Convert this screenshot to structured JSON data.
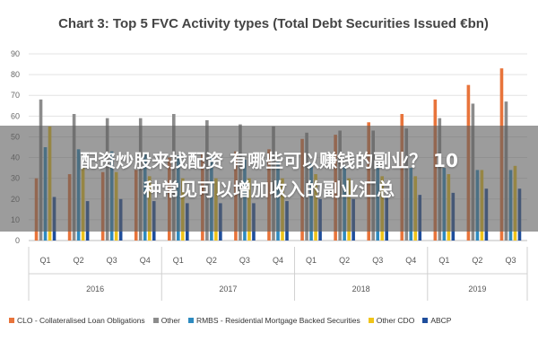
{
  "overlay": {
    "line1": "配资炒股来找配资 有哪些可以赚钱的副业？ 10",
    "line2": "种常见可以增加收入的副业汇总"
  },
  "chart_data": {
    "type": "bar",
    "title": "Chart 3: Top 5 FVC Activity types (Total Debt Securities Issued €bn)",
    "xlabel": "",
    "ylabel": "",
    "ylim": [
      0,
      90
    ],
    "yticks": [
      0,
      10,
      20,
      30,
      40,
      50,
      60,
      70,
      80,
      90
    ],
    "grid": true,
    "legend_position": "bottom",
    "categories": [
      "Q1",
      "Q2",
      "Q3",
      "Q4",
      "Q1",
      "Q2",
      "Q3",
      "Q4",
      "Q1",
      "Q2",
      "Q3",
      "Q4",
      "Q1",
      "Q2",
      "Q3"
    ],
    "groups": [
      {
        "label": "2016",
        "count": 4
      },
      {
        "label": "2017",
        "count": 4
      },
      {
        "label": "2018",
        "count": 4
      },
      {
        "label": "2019",
        "count": 3
      }
    ],
    "series": [
      {
        "name": "CLO - Collateralised Loan Obligations",
        "color": "#e8743b",
        "values": [
          30,
          32,
          33,
          34,
          40,
          42,
          43,
          44,
          49,
          51,
          57,
          61,
          68,
          75,
          83
        ]
      },
      {
        "name": "Other",
        "color": "#8c8c8c",
        "values": [
          68,
          61,
          59,
          59,
          61,
          58,
          56,
          55,
          52,
          53,
          53,
          54,
          59,
          66,
          67
        ]
      },
      {
        "name": "RMBS - Residential Mortgage Backed Securities",
        "color": "#2e8bc0",
        "values": [
          45,
          44,
          43,
          42,
          41,
          40,
          39,
          38,
          37,
          36,
          36,
          35,
          35,
          34,
          34
        ]
      },
      {
        "name": "Other CDO",
        "color": "#f0c419",
        "values": [
          55,
          35,
          33,
          31,
          30,
          30,
          30,
          30,
          32,
          30,
          31,
          31,
          32,
          34,
          36
        ]
      },
      {
        "name": "ABCP",
        "color": "#1f4e9c",
        "values": [
          21,
          19,
          20,
          19,
          18,
          18,
          18,
          19,
          20,
          20,
          21,
          22,
          23,
          25,
          25
        ]
      }
    ]
  }
}
